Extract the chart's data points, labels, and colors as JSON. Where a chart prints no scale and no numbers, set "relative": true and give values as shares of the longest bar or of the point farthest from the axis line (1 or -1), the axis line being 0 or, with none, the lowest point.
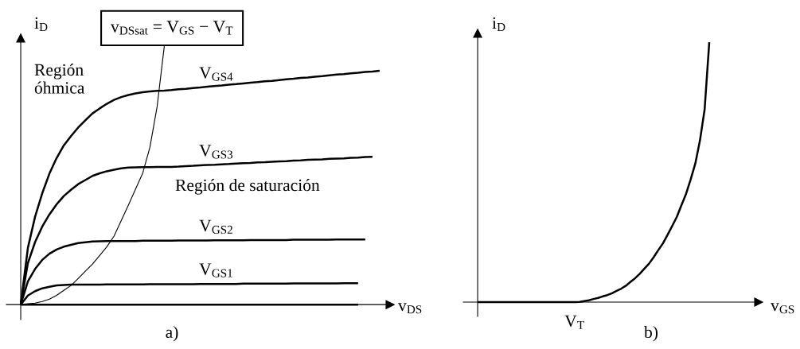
{
  "chart_data": [
    {
      "type": "line",
      "title": "a)",
      "xlabel": "v$_{DS}$",
      "ylabel": "i$_{D}$",
      "relative": true,
      "annotations": [
        "Región\nóhmica",
        "Región de saturación"
      ],
      "categories": [
        null,
        null,
        null,
        null,
        null,
        null,
        null,
        null,
        null,
        null,
        null,
        null,
        null,
        null,
        null,
        null,
        null,
        null,
        null,
        null,
        null,
        null,
        null,
        null,
        null,
        null,
        null,
        null,
        null,
        null,
        null,
        null,
        null,
        null,
        null,
        null,
        null,
        null,
        null,
        null,
        null,
        null,
        null,
        null,
        null,
        null,
        null,
        null,
        null,
        null,
        null
      ],
      "series": [
        {
          "color": "#000000",
          "values": [
            0,
            0,
            0,
            0,
            0,
            0,
            0,
            0,
            0,
            0,
            0,
            0,
            0,
            0,
            0,
            0,
            0,
            0,
            0,
            0,
            0,
            0,
            0,
            0,
            0,
            0,
            0,
            0,
            0,
            0,
            0,
            0,
            0,
            0,
            0,
            0,
            0,
            0,
            0,
            0,
            0,
            0,
            0,
            0,
            0,
            0,
            0,
            0,
            null,
            null,
            null
          ]
        },
        {
          "name": "V$_{GS1}$",
          "color": "#000000",
          "values": [
            0,
            0.035,
            0.052,
            0.063,
            0.069,
            0.074,
            0.076,
            0.077,
            0.077,
            0.077,
            0.077,
            0.077,
            0.078,
            0.078,
            0.078,
            0.078,
            0.078,
            0.078,
            0.079,
            0.079,
            0.079,
            0.079,
            0.079,
            0.079,
            0.079,
            0.08,
            0.08,
            0.08,
            0.08,
            0.08,
            0.08,
            0.081,
            0.081,
            0.081,
            0.081,
            0.081,
            0.081,
            0.081,
            0.082,
            0.082,
            0.082,
            0.082,
            0.082,
            0.082,
            0.082,
            0.083,
            0.083,
            0.083,
            null,
            null,
            null
          ]
        },
        {
          "name": "V$_{GS2}$",
          "color": "#000000",
          "values": [
            0,
            0.09,
            0.138,
            0.173,
            0.197,
            0.213,
            0.224,
            0.231,
            0.238,
            0.241,
            0.244,
            0.245,
            0.246,
            0.246,
            0.246,
            0.246,
            0.246,
            0.247,
            0.247,
            0.247,
            0.247,
            0.247,
            0.248,
            0.248,
            0.248,
            0.248,
            0.248,
            0.249,
            0.249,
            0.249,
            0.249,
            0.249,
            0.25,
            0.25,
            0.25,
            0.25,
            0.25,
            0.25,
            0.251,
            0.251,
            0.251,
            0.251,
            0.251,
            0.251,
            0.252,
            0.252,
            0.252,
            0.252,
            0.252,
            null,
            null
          ]
        },
        {
          "name": "V$_{GS3}$",
          "color": "#000000",
          "values": [
            0,
            0.161,
            0.242,
            0.302,
            0.349,
            0.388,
            0.42,
            0.444,
            0.466,
            0.482,
            0.498,
            0.508,
            0.516,
            0.522,
            0.527,
            0.53,
            0.531,
            0.532,
            0.532,
            0.533,
            0.533,
            0.533,
            0.534,
            0.536,
            0.537,
            0.539,
            0.54,
            0.541,
            0.543,
            0.544,
            0.546,
            0.547,
            0.548,
            0.55,
            0.551,
            0.553,
            0.554,
            0.555,
            0.557,
            0.558,
            0.56,
            0.561,
            0.562,
            0.564,
            0.565,
            0.566,
            0.568,
            0.569,
            0.571,
            0.572,
            null
          ]
        },
        {
          "name": "V$_{GS4}$",
          "color": "#000000",
          "values": [
            0,
            0.22,
            0.34,
            0.431,
            0.507,
            0.567,
            0.616,
            0.652,
            0.685,
            0.713,
            0.74,
            0.759,
            0.777,
            0.792,
            0.803,
            0.811,
            0.817,
            0.822,
            0.825,
            0.827,
            0.828,
            0.83,
            0.833,
            0.835,
            0.838,
            0.84,
            0.843,
            0.846,
            0.848,
            0.851,
            0.853,
            0.856,
            0.859,
            0.861,
            0.864,
            0.866,
            0.869,
            0.872,
            0.874,
            0.877,
            0.879,
            0.882,
            0.884,
            0.887,
            0.89,
            0.892,
            0.895,
            0.897,
            0.9,
            0.902,
            0.905
          ]
        },
        {
          "name": "v$_{DSsat}$ = V$_{GS}$ − V$_{T}$",
          "color": "#000000",
          "values": [
            0,
            0.003,
            0.006,
            0.012,
            0.021,
            0.036,
            0.055,
            0.074,
            0.101,
            0.129,
            0.157,
            0.19,
            0.224,
            0.265,
            0.325,
            0.385,
            0.447,
            0.509,
            0.609,
            0.766,
            1.0,
            null,
            null,
            null,
            null,
            null,
            null,
            null,
            null,
            null,
            null,
            null,
            null,
            null,
            null,
            null,
            null,
            null,
            null,
            null,
            null,
            null,
            null,
            null,
            null,
            null,
            null,
            null,
            null,
            null,
            null
          ]
        }
      ]
    },
    {
      "type": "line",
      "title": "b)",
      "xlabel": "v$_{GS}$",
      "ylabel": "i$_{D}$",
      "relative": true,
      "annotations": [
        "V$_{T}$"
      ],
      "categories": [
        null,
        null,
        null,
        null,
        null,
        null,
        null,
        null,
        null,
        null,
        null,
        null,
        null,
        null,
        null,
        null,
        null,
        null,
        null,
        null,
        null,
        null,
        null,
        null,
        null,
        null,
        null,
        null,
        null,
        null,
        null,
        null,
        null,
        null,
        null,
        null,
        null,
        null,
        null,
        null,
        null,
        null,
        null,
        null,
        null,
        null,
        null,
        null,
        null,
        null,
        null
      ],
      "series": [
        {
          "color": "#000000",
          "values": [
            0,
            0,
            0,
            0,
            0,
            0,
            0,
            0,
            0,
            0,
            0,
            0,
            0,
            0,
            0,
            0,
            0,
            0,
            0,
            0,
            0,
            0,
            0.001,
            0.004,
            0.007,
            0.012,
            0.016,
            0.022,
            0.027,
            0.034,
            0.043,
            0.052,
            0.063,
            0.078,
            0.092,
            0.109,
            0.129,
            0.148,
            0.173,
            0.2,
            0.226,
            0.259,
            0.293,
            0.328,
            0.373,
            0.417,
            0.473,
            0.534,
            0.623,
            0.742,
            1.0
          ]
        }
      ]
    }
  ]
}
